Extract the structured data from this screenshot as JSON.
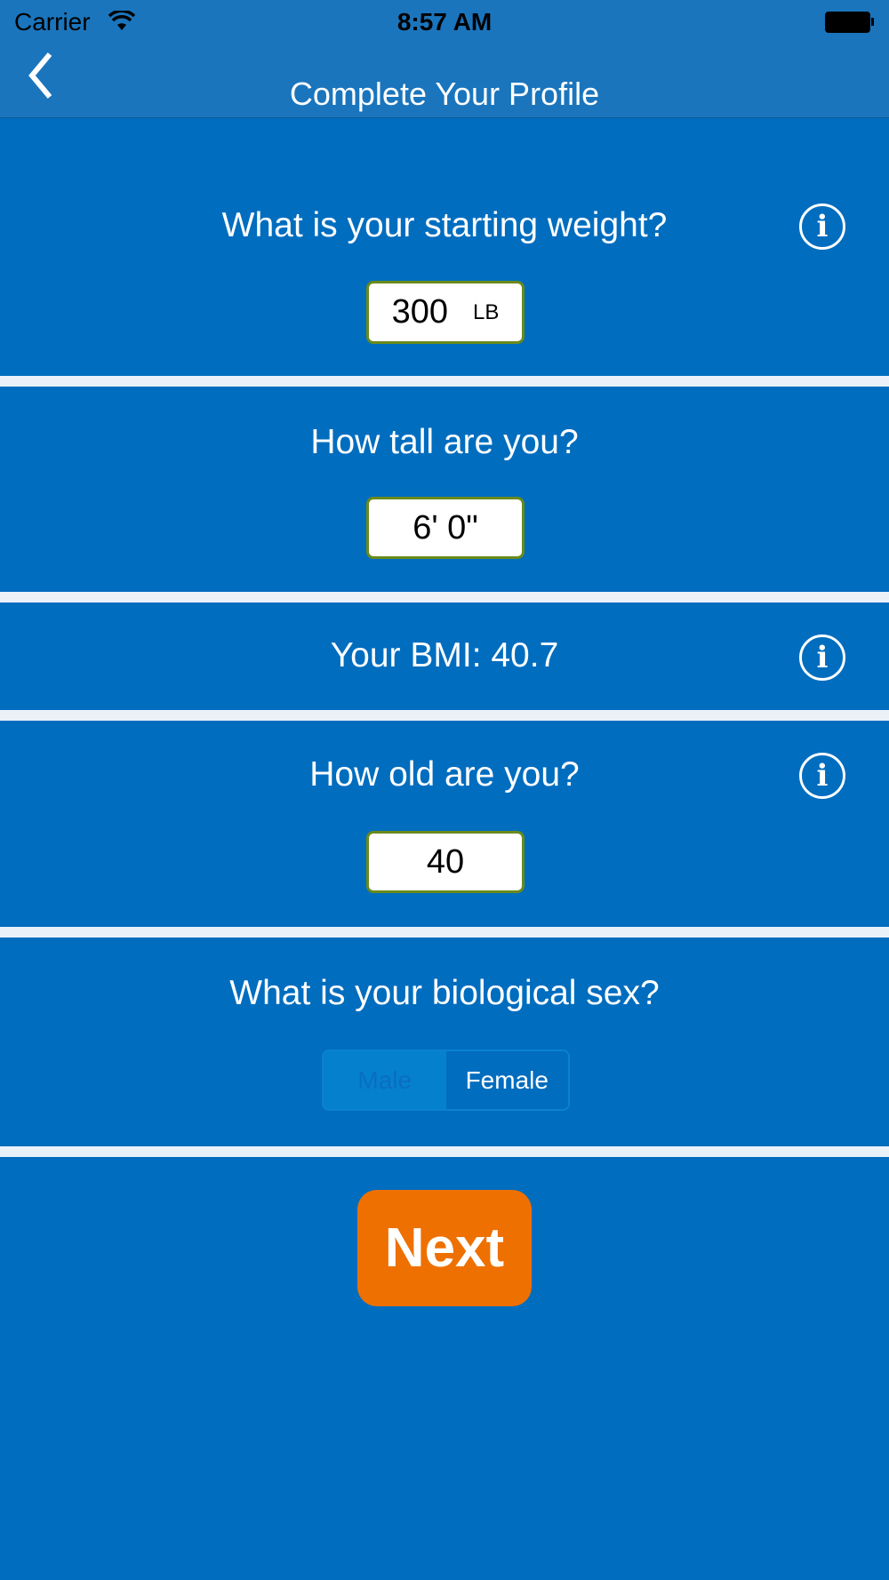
{
  "status_bar": {
    "carrier": "Carrier",
    "time": "8:57 AM"
  },
  "nav": {
    "title": "Complete Your Profile"
  },
  "weight": {
    "question": "What is your starting weight?",
    "value": "300",
    "unit": "LB"
  },
  "height": {
    "question": "How tall are you?",
    "value": "6' 0\""
  },
  "bmi": {
    "text": "Your BMI: 40.7"
  },
  "age": {
    "question": "How old are you?",
    "value": "40"
  },
  "sex": {
    "question": "What is your biological sex?",
    "options": [
      "Male",
      "Female"
    ],
    "selected": "Female"
  },
  "next_label": "Next",
  "colors": {
    "header": "#1a75bd",
    "background": "#006dbf",
    "next": "#ee7000",
    "field_border": "#6a8a1a"
  }
}
